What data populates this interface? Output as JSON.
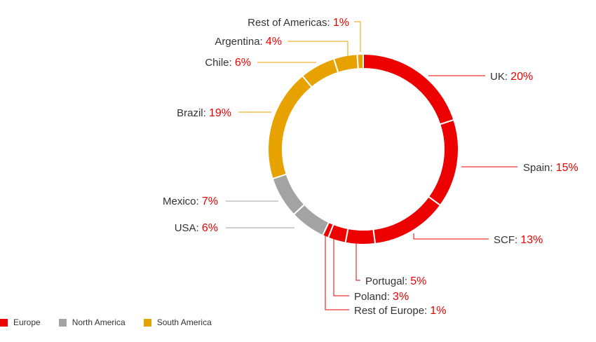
{
  "chart_data": {
    "type": "pie",
    "donut": true,
    "groups": [
      {
        "name": "Europe",
        "color": "#ec0000"
      },
      {
        "name": "North America",
        "color": "#a3a3a3"
      },
      {
        "name": "South America",
        "color": "#e8a200"
      }
    ],
    "slices": [
      {
        "label": "UK",
        "value": 20,
        "display": "20%",
        "group": "Europe"
      },
      {
        "label": "Spain",
        "value": 15,
        "display": "15%",
        "group": "Europe"
      },
      {
        "label": "SCF",
        "value": 13,
        "display": "13%",
        "group": "Europe"
      },
      {
        "label": "Portugal",
        "value": 5,
        "display": "5%",
        "group": "Europe"
      },
      {
        "label": "Poland",
        "value": 3,
        "display": "3%",
        "group": "Europe"
      },
      {
        "label": "Rest of Europe",
        "value": 1,
        "display": "1%",
        "group": "Europe"
      },
      {
        "label": "USA",
        "value": 6,
        "display": "6%",
        "group": "North America"
      },
      {
        "label": "Mexico",
        "value": 7,
        "display": "7%",
        "group": "North America"
      },
      {
        "label": "Brazil",
        "value": 19,
        "display": "19%",
        "group": "South America"
      },
      {
        "label": "Chile",
        "value": 6,
        "display": "6%",
        "group": "South America"
      },
      {
        "label": "Argentina",
        "value": 4,
        "display": "4%",
        "group": "South America"
      },
      {
        "label": "Rest of Americas",
        "value": 1,
        "display": "1%",
        "group": "South America"
      }
    ],
    "legend_position": "bottom-left",
    "grid": false
  }
}
